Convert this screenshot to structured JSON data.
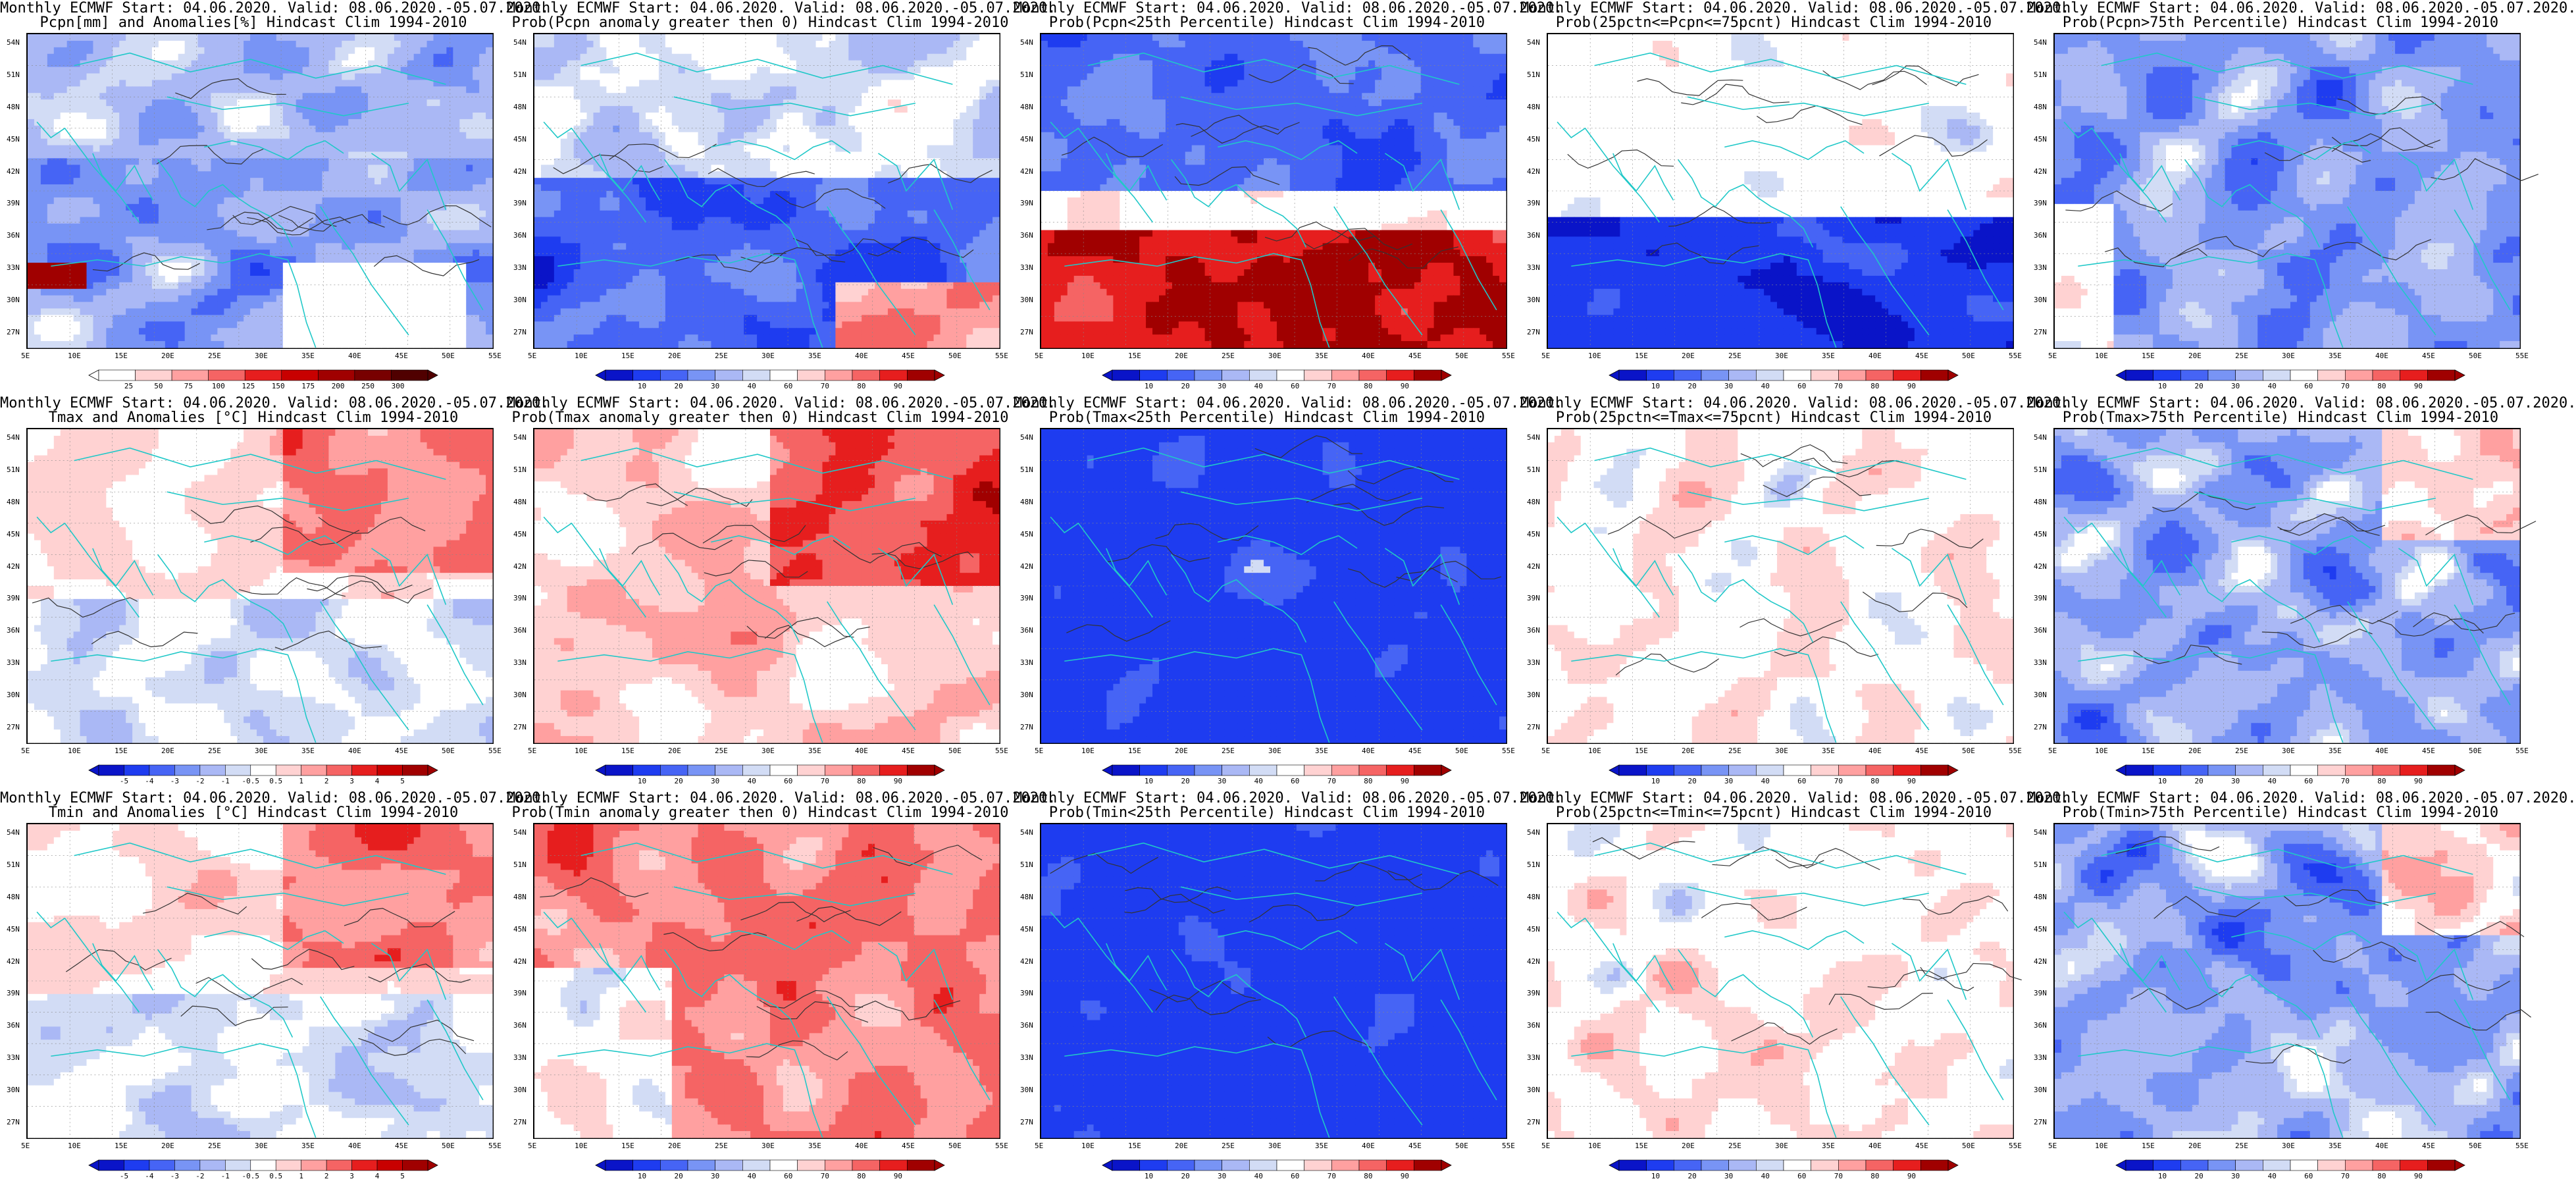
{
  "panels": [
    {
      "line1": "Monthly ECMWF Start: 04.06.2020. Valid: 08.06.2020.-05.07.2020.",
      "line2": "Pcpn[mm] and Anomalies[%] Hindcast Clim 1994-2010",
      "scheme": "precip",
      "colorbar": {
        "type": "precip",
        "labels": [
          "25",
          "50",
          "75",
          "100",
          "125",
          "150",
          "175",
          "200",
          "250",
          "300"
        ]
      }
    },
    {
      "line1": "Monthly ECMWF Start: 04.06.2020. Valid: 08.06.2020.-05.07.2020.",
      "line2": "Prob(Pcpn anomaly greater then 0) Hindcast Clim 1994-2010",
      "scheme": "blue_low",
      "colorbar": {
        "type": "prob",
        "labels": [
          "10",
          "20",
          "30",
          "40",
          "60",
          "70",
          "80",
          "90"
        ]
      }
    },
    {
      "line1": "Monthly ECMWF Start: 04.06.2020. Valid: 08.06.2020.-05.07.2020.",
      "line2": "Prob(Pcpn<25th Percentile) Hindcast Clim 1994-2010",
      "scheme": "mixed_south_red",
      "colorbar": {
        "type": "prob",
        "labels": [
          "10",
          "20",
          "30",
          "40",
          "60",
          "70",
          "80",
          "90"
        ]
      }
    },
    {
      "line1": "Monthly ECMWF Start: 04.06.2020. Valid: 08.06.2020.-05.07.2020.",
      "line2": "Prob(25pctn<=Pcpn<=75pcnt) Hindcast Clim 1994-2010",
      "scheme": "light_mixed",
      "colorbar": {
        "type": "prob",
        "labels": [
          "10",
          "20",
          "30",
          "40",
          "60",
          "70",
          "80",
          "90"
        ]
      }
    },
    {
      "line1": "Monthly ECMWF Start: 04.06.2020. Valid: 08.06.2020.-05.07.2020.",
      "line2": "Prob(Pcpn>75th Percentile) Hindcast Clim 1994-2010",
      "scheme": "blue_mid",
      "colorbar": {
        "type": "prob",
        "labels": [
          "10",
          "20",
          "30",
          "40",
          "60",
          "70",
          "80",
          "90"
        ]
      }
    },
    {
      "line1": "Monthly ECMWF Start: 04.06.2020. Valid: 08.06.2020.-05.07.2020.",
      "line2": "Tmax and Anomalies [°C] Hindcast Clim 1994-2010",
      "scheme": "pale_red",
      "colorbar": {
        "type": "anom",
        "labels": [
          "-5",
          "-4",
          "-3",
          "-2",
          "-1",
          "-0.5",
          "0.5",
          "1",
          "2",
          "3",
          "4",
          "5"
        ]
      }
    },
    {
      "line1": "Monthly ECMWF Start: 04.06.2020. Valid: 08.06.2020.-05.07.2020.",
      "line2": "Prob(Tmax anomaly greater then 0) Hindcast Clim 1994-2010",
      "scheme": "red_mid",
      "colorbar": {
        "type": "prob",
        "labels": [
          "10",
          "20",
          "30",
          "40",
          "60",
          "70",
          "80",
          "90"
        ]
      }
    },
    {
      "line1": "Monthly ECMWF Start: 04.06.2020. Valid: 08.06.2020.-05.07.2020.",
      "line2": "Prob(Tmax<25th Percentile) Hindcast Clim 1994-2010",
      "scheme": "deep_blue",
      "colorbar": {
        "type": "prob",
        "labels": [
          "10",
          "20",
          "30",
          "40",
          "60",
          "70",
          "80",
          "90"
        ]
      }
    },
    {
      "line1": "Monthly ECMWF Start: 04.06.2020. Valid: 08.06.2020.-05.07.2020.",
      "line2": "Prob(25pctn<=Tmax<=75pcnt) Hindcast Clim 1994-2010",
      "scheme": "light_mixed_red",
      "colorbar": {
        "type": "prob",
        "labels": [
          "10",
          "20",
          "30",
          "40",
          "60",
          "70",
          "80",
          "90"
        ]
      }
    },
    {
      "line1": "Monthly ECMWF Start: 04.06.2020. Valid: 08.06.2020.-05.07.2020.",
      "line2": "Prob(Tmax>75th Percentile) Hindcast Clim 1994-2010",
      "scheme": "blue_red_mix",
      "colorbar": {
        "type": "prob",
        "labels": [
          "10",
          "20",
          "30",
          "40",
          "60",
          "70",
          "80",
          "90"
        ]
      }
    },
    {
      "line1": "Monthly ECMWF Start: 04.06.2020. Valid: 08.06.2020.-05.07.2020.",
      "line2": "Tmin and Anomalies [°C] Hindcast Clim 1994-2010",
      "scheme": "pale_red",
      "colorbar": {
        "type": "anom",
        "labels": [
          "-5",
          "-4",
          "-3",
          "-2",
          "-1",
          "-0.5",
          "0.5",
          "1",
          "2",
          "3",
          "4",
          "5"
        ]
      }
    },
    {
      "line1": "Monthly ECMWF Start: 04.06.2020. Valid: 08.06.2020.-05.07.2020.",
      "line2": "Prob(Tmin anomaly greater then 0) Hindcast Clim 1994-2010",
      "scheme": "red_strong",
      "colorbar": {
        "type": "prob",
        "labels": [
          "10",
          "20",
          "30",
          "40",
          "60",
          "70",
          "80",
          "90"
        ]
      }
    },
    {
      "line1": "Monthly ECMWF Start: 04.06.2020. Valid: 08.06.2020.-05.07.2020.",
      "line2": "Prob(Tmin<25th Percentile) Hindcast Clim 1994-2010",
      "scheme": "deep_blue",
      "colorbar": {
        "type": "prob",
        "labels": [
          "10",
          "20",
          "30",
          "40",
          "60",
          "70",
          "80",
          "90"
        ]
      }
    },
    {
      "line1": "Monthly ECMWF Start: 04.06.2020. Valid: 08.06.2020.-05.07.2020.",
      "line2": "Prob(25pctn<=Tmin<=75pcnt) Hindcast Clim 1994-2010",
      "scheme": "light_mixed_red",
      "colorbar": {
        "type": "prob",
        "labels": [
          "10",
          "20",
          "30",
          "40",
          "60",
          "70",
          "80",
          "90"
        ]
      }
    },
    {
      "line1": "Monthly ECMWF Start: 04.06.2020. Valid: 08.06.2020.-05.07.2020.",
      "line2": "Prob(Tmin>75th Percentile) Hindcast Clim 1994-2010",
      "scheme": "blue_red_mix",
      "colorbar": {
        "type": "prob",
        "labels": [
          "10",
          "20",
          "30",
          "40",
          "60",
          "70",
          "80",
          "90"
        ]
      }
    }
  ],
  "lat_labels": [
    "54N",
    "51N",
    "48N",
    "45N",
    "42N",
    "39N",
    "36N",
    "33N",
    "30N",
    "27N"
  ],
  "lon_labels": [
    "5E",
    "10E",
    "15E",
    "20E",
    "25E",
    "30E",
    "35E",
    "40E",
    "45E",
    "50E",
    "55E"
  ],
  "colors": {
    "coast": "#20c8c8",
    "contour": "#333333",
    "prob_ramp": [
      "#0a14c8",
      "#1e3cf0",
      "#4664f5",
      "#7894f5",
      "#aab8f5",
      "#d2dcf5",
      "#ffffff",
      "#ffd2d2",
      "#ffa0a0",
      "#f56464",
      "#e61e1e",
      "#a00000"
    ],
    "precip_ramp": [
      "#ffffff",
      "#ffd2d2",
      "#ffa0a0",
      "#f56464",
      "#e61e1e",
      "#c80000",
      "#a00000",
      "#780000"
    ]
  }
}
